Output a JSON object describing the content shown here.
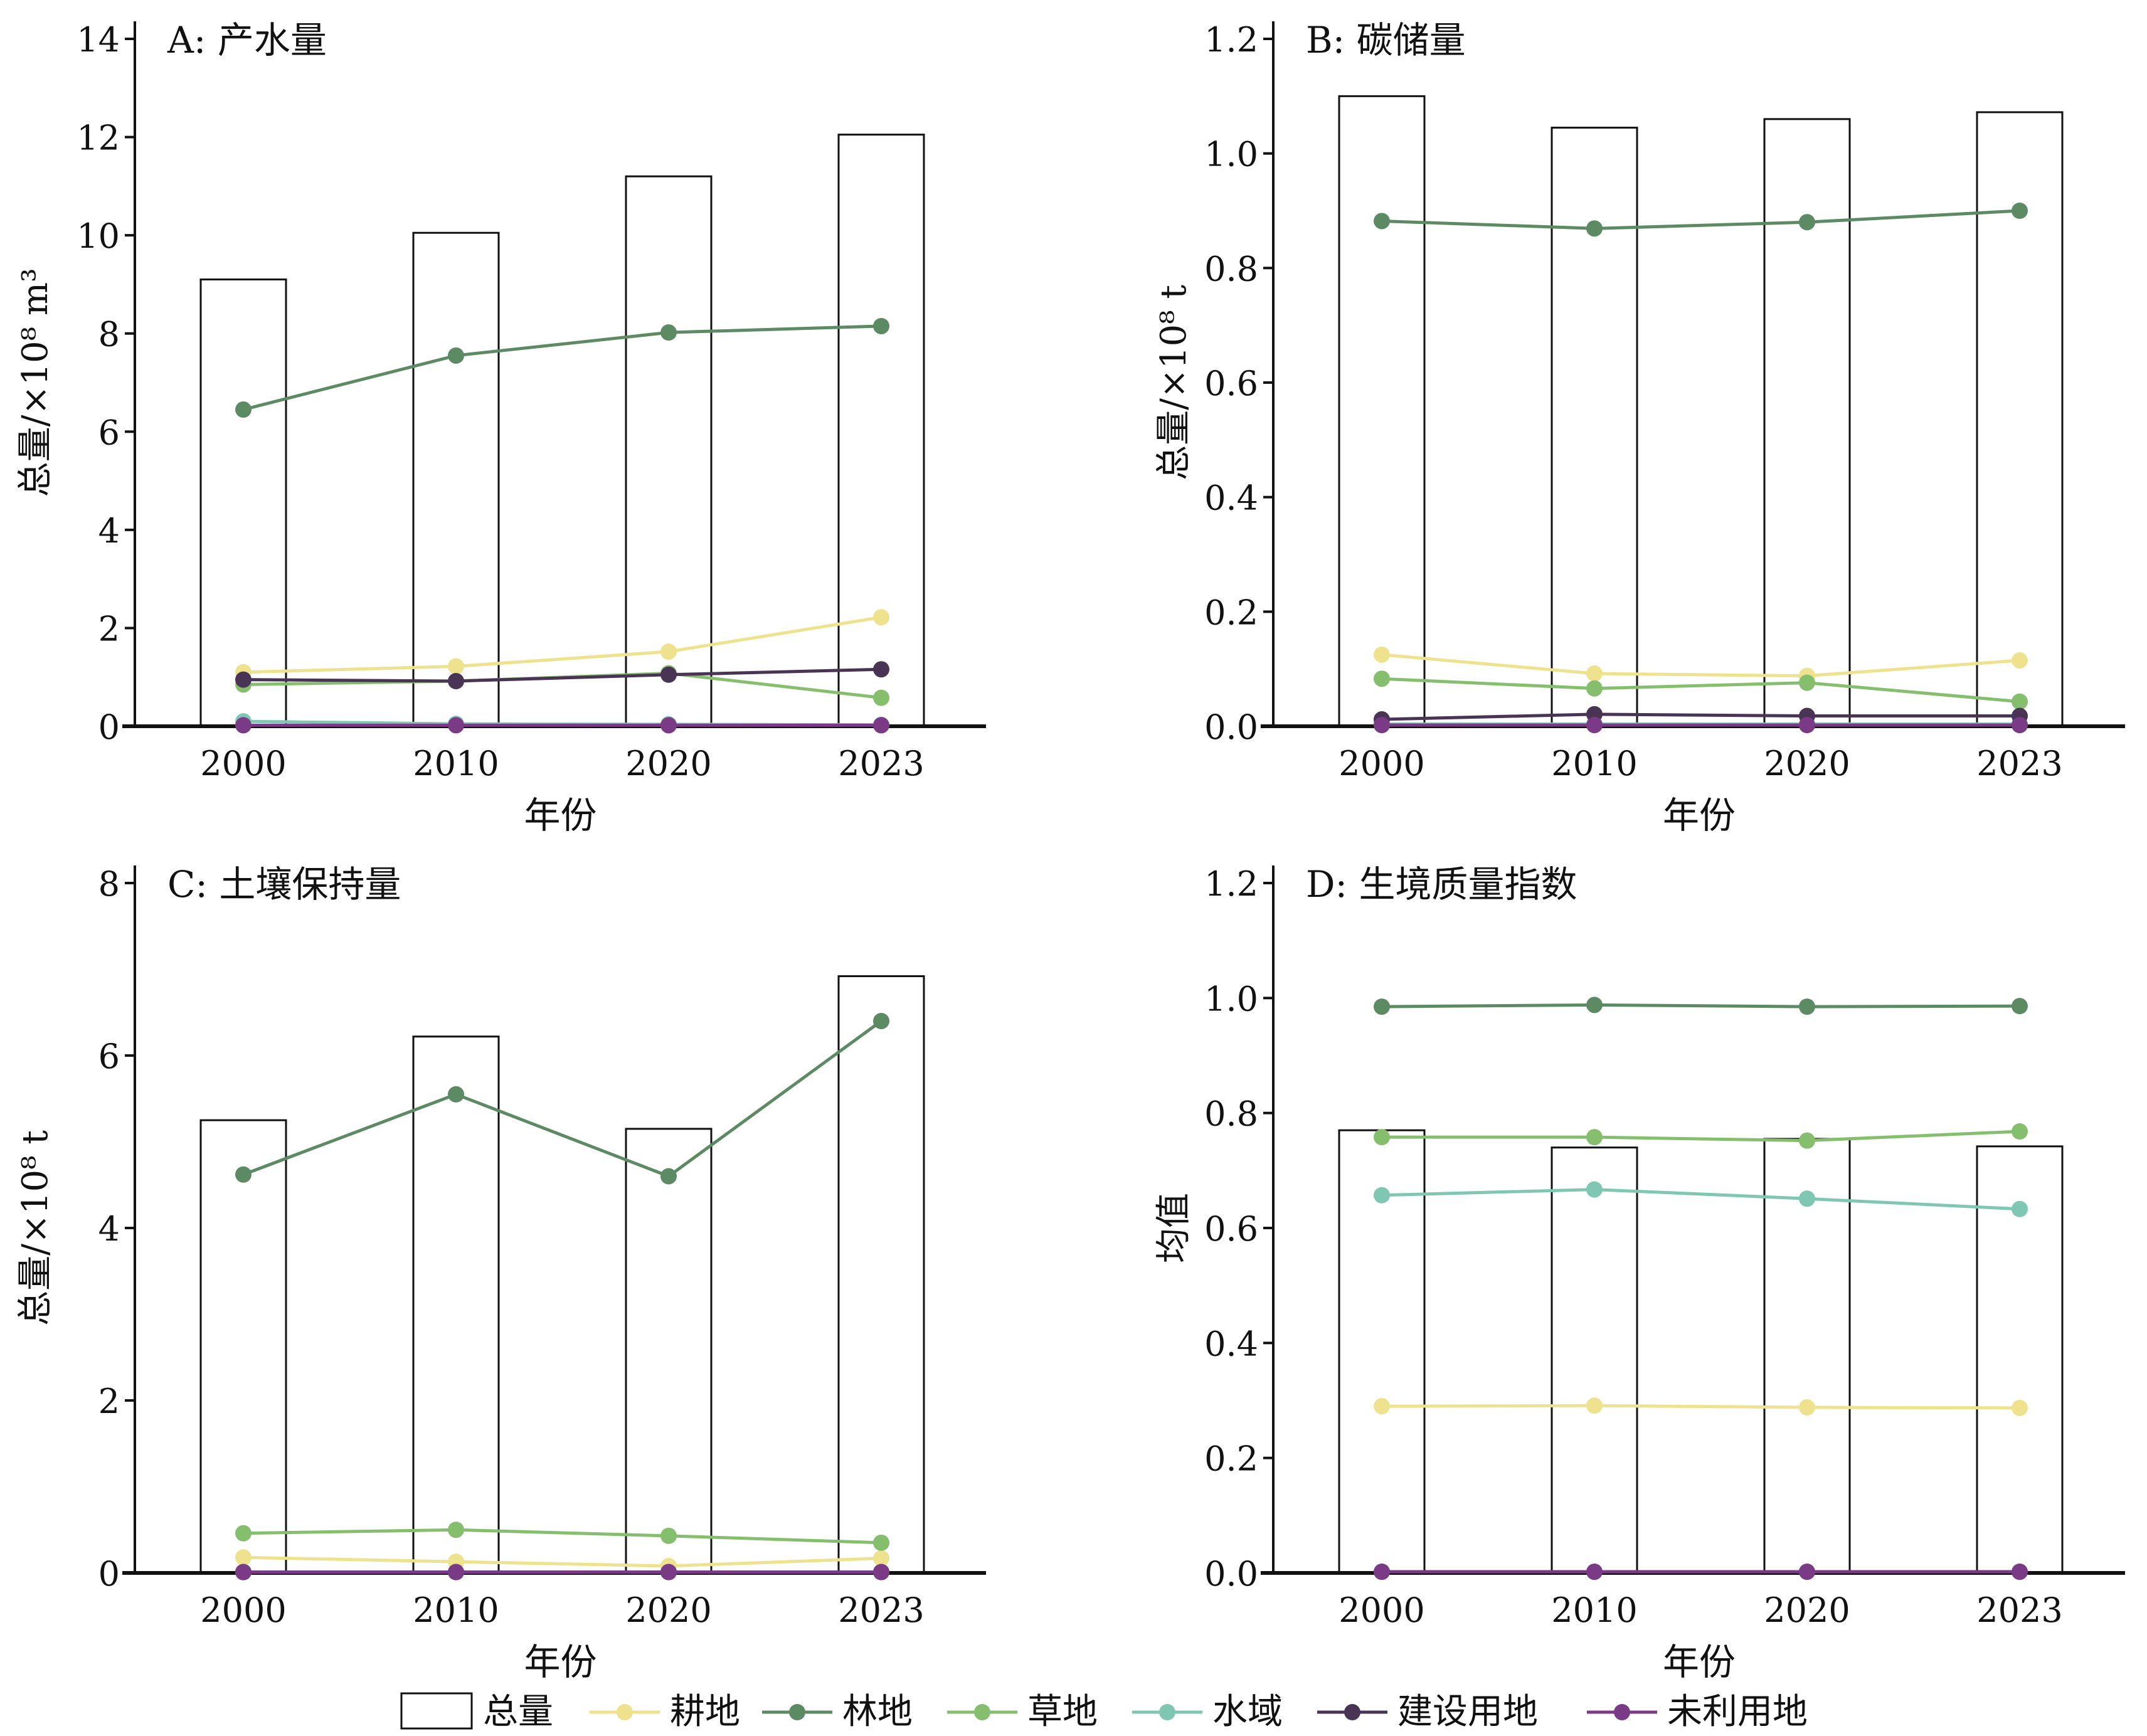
{
  "chart_data": [
    {
      "type": "bar",
      "panel": "A",
      "title": "A: 产水量",
      "xlabel": "年份",
      "ylabel": "总量/×10⁸ m³",
      "categories": [
        "2000",
        "2010",
        "2020",
        "2023"
      ],
      "ylim": [
        0,
        14
      ],
      "yticks": [
        0,
        2,
        4,
        6,
        8,
        10,
        12,
        14
      ],
      "ytick_decimals": 0,
      "bars": {
        "name": "总量",
        "values": [
          9.1,
          10.05,
          11.2,
          12.05
        ]
      },
      "series": [
        {
          "name": "耕地",
          "values": [
            1.1,
            1.22,
            1.52,
            2.22
          ]
        },
        {
          "name": "林地",
          "values": [
            6.45,
            7.55,
            8.02,
            8.15
          ]
        },
        {
          "name": "草地",
          "values": [
            0.85,
            0.92,
            1.08,
            0.58
          ]
        },
        {
          "name": "水域",
          "values": [
            0.1,
            0.05,
            0.04,
            0.03
          ]
        },
        {
          "name": "建设用地",
          "values": [
            0.95,
            0.92,
            1.05,
            1.16
          ]
        },
        {
          "name": "未利用地",
          "values": [
            0.02,
            0.02,
            0.02,
            0.02
          ]
        }
      ]
    },
    {
      "type": "bar",
      "panel": "B",
      "title": "B: 碳储量",
      "xlabel": "年份",
      "ylabel": "总量/×10⁸ t",
      "categories": [
        "2000",
        "2010",
        "2020",
        "2023"
      ],
      "ylim": [
        0,
        1.2
      ],
      "yticks": [
        0,
        0.2,
        0.4,
        0.6,
        0.8,
        1.0,
        1.2
      ],
      "ytick_decimals": 1,
      "bars": {
        "name": "总量",
        "values": [
          1.1,
          1.045,
          1.06,
          1.072
        ]
      },
      "series": [
        {
          "name": "耕地",
          "values": [
            0.125,
            0.092,
            0.088,
            0.115
          ]
        },
        {
          "name": "林地",
          "values": [
            0.882,
            0.869,
            0.88,
            0.9
          ]
        },
        {
          "name": "草地",
          "values": [
            0.083,
            0.066,
            0.076,
            0.043
          ]
        },
        {
          "name": "水域",
          "values": [
            0.004,
            0.004,
            0.004,
            0.004
          ]
        },
        {
          "name": "建设用地",
          "values": [
            0.012,
            0.021,
            0.018,
            0.018
          ]
        },
        {
          "name": "未利用地",
          "values": [
            0.002,
            0.002,
            0.002,
            0.002
          ]
        }
      ]
    },
    {
      "type": "bar",
      "panel": "C",
      "title": "C: 土壤保持量",
      "xlabel": "年份",
      "ylabel": "总量/×10⁸ t",
      "categories": [
        "2000",
        "2010",
        "2020",
        "2023"
      ],
      "ylim": [
        0,
        8
      ],
      "yticks": [
        0,
        2,
        4,
        6,
        8
      ],
      "ytick_decimals": 0,
      "bars": {
        "name": "总量",
        "values": [
          5.25,
          6.22,
          5.15,
          6.92
        ]
      },
      "series": [
        {
          "name": "耕地",
          "values": [
            0.18,
            0.13,
            0.08,
            0.17
          ]
        },
        {
          "name": "林地",
          "values": [
            4.62,
            5.55,
            4.6,
            6.4
          ]
        },
        {
          "name": "草地",
          "values": [
            0.46,
            0.5,
            0.43,
            0.35
          ]
        },
        {
          "name": "水域",
          "values": [
            0.01,
            0.01,
            0.01,
            0.01
          ]
        },
        {
          "name": "建设用地",
          "values": [
            0.01,
            0.01,
            0.01,
            0.01
          ]
        },
        {
          "name": "未利用地",
          "values": [
            0.01,
            0.01,
            0.01,
            0.01
          ]
        }
      ]
    },
    {
      "type": "bar",
      "panel": "D",
      "title": "D: 生境质量指数",
      "xlabel": "年份",
      "ylabel": "均值",
      "categories": [
        "2000",
        "2010",
        "2020",
        "2023"
      ],
      "ylim": [
        0,
        1.2
      ],
      "yticks": [
        0,
        0.2,
        0.4,
        0.6,
        0.8,
        1.0,
        1.2
      ],
      "ytick_decimals": 1,
      "bars": {
        "name": "总量",
        "values": [
          0.77,
          0.74,
          0.755,
          0.742
        ]
      },
      "series": [
        {
          "name": "耕地",
          "values": [
            0.29,
            0.291,
            0.288,
            0.287
          ]
        },
        {
          "name": "林地",
          "values": [
            0.985,
            0.988,
            0.985,
            0.986
          ]
        },
        {
          "name": "草地",
          "values": [
            0.758,
            0.758,
            0.752,
            0.768
          ]
        },
        {
          "name": "水域",
          "values": [
            0.657,
            0.667,
            0.651,
            0.633
          ]
        },
        {
          "name": "建设用地",
          "values": [
            0.002,
            0.002,
            0.002,
            0.002
          ]
        },
        {
          "name": "未利用地",
          "values": [
            0.002,
            0.002,
            0.002,
            0.002
          ]
        }
      ]
    }
  ],
  "colors": {
    "耕地": "#eee28f",
    "林地": "#5c8a62",
    "草地": "#85bf6e",
    "水域": "#7fc7b2",
    "建设用地": "#4a3455",
    "未利用地": "#7b3a86"
  },
  "legend": {
    "placement": "bottom",
    "items": [
      "总量",
      "耕地",
      "林地",
      "草地",
      "水域",
      "建设用地",
      "未利用地"
    ]
  }
}
